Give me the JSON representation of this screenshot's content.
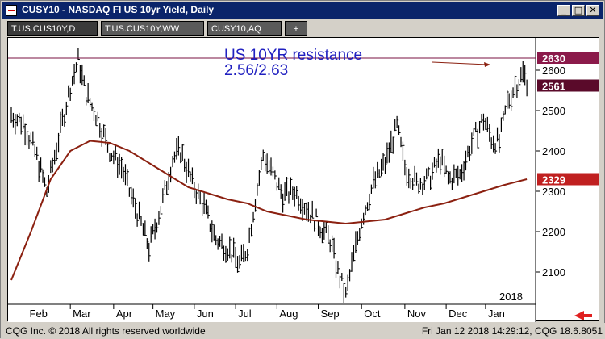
{
  "window": {
    "title": "CUSY10 - NASDAQ FI US 10yr Yield, Daily",
    "minimize_label": "_",
    "maximize_label": "□",
    "close_label": "✕"
  },
  "tabs": [
    {
      "label": "T.US.CUS10Y,D",
      "active": true
    },
    {
      "label": "T.US.CUS10Y,WW",
      "active": false
    },
    {
      "label": "CUSY10,AQ",
      "active": false
    },
    {
      "label": "+",
      "active": false
    }
  ],
  "annotation": {
    "line1": "US 10YR resistance",
    "line2": "2.56/2.63"
  },
  "year_label": "2018",
  "price_tags": [
    {
      "value": 2630,
      "label": "2630",
      "color": "#8b1a4a"
    },
    {
      "value": 2561,
      "label": "2561",
      "color": "#5a0a2a"
    },
    {
      "value": 2329,
      "label": "2329",
      "color": "#c02020"
    }
  ],
  "status": {
    "left": "CQG Inc. © 2018 All rights reserved worldwide",
    "right": "Fri Jan 12 2018 14:29:12, CQG 18.6.8051"
  },
  "colors": {
    "ma_line": "#8b2010",
    "resistance_line": "#7a1040",
    "annotation_text": "#2020c0",
    "bars": "#000000"
  },
  "chart_data": {
    "type": "line",
    "title": "CUSY10 - NASDAQ FI US 10yr Yield, Daily",
    "y_ticks": [
      2100,
      2200,
      2300,
      2400,
      2500,
      2600
    ],
    "ylim": [
      2020,
      2680
    ],
    "x_labels": [
      "Feb",
      "Mar",
      "Apr",
      "May",
      "Jun",
      "Jul",
      "Aug",
      "Sep",
      "Oct",
      "Nov",
      "Dec",
      "Jan"
    ],
    "resistance_levels": [
      2630,
      2561
    ],
    "price_path": [
      [
        0,
        2490
      ],
      [
        6,
        2470
      ],
      [
        12,
        2400
      ],
      [
        18,
        2300
      ],
      [
        24,
        2430
      ],
      [
        30,
        2560
      ],
      [
        34,
        2625
      ],
      [
        38,
        2540
      ],
      [
        44,
        2480
      ],
      [
        50,
        2400
      ],
      [
        56,
        2360
      ],
      [
        60,
        2300
      ],
      [
        66,
        2220
      ],
      [
        70,
        2160
      ],
      [
        76,
        2260
      ],
      [
        82,
        2380
      ],
      [
        86,
        2400
      ],
      [
        92,
        2320
      ],
      [
        98,
        2260
      ],
      [
        104,
        2180
      ],
      [
        110,
        2160
      ],
      [
        116,
        2120
      ],
      [
        120,
        2160
      ],
      [
        124,
        2280
      ],
      [
        128,
        2390
      ],
      [
        132,
        2350
      ],
      [
        138,
        2290
      ],
      [
        144,
        2300
      ],
      [
        150,
        2260
      ],
      [
        156,
        2220
      ],
      [
        162,
        2180
      ],
      [
        166,
        2100
      ],
      [
        170,
        2040
      ],
      [
        174,
        2140
      ],
      [
        178,
        2230
      ],
      [
        184,
        2320
      ],
      [
        190,
        2370
      ],
      [
        196,
        2460
      ],
      [
        200,
        2360
      ],
      [
        206,
        2320
      ],
      [
        212,
        2330
      ],
      [
        218,
        2380
      ],
      [
        222,
        2330
      ],
      [
        228,
        2340
      ],
      [
        234,
        2420
      ],
      [
        240,
        2480
      ],
      [
        244,
        2430
      ],
      [
        248,
        2420
      ],
      [
        252,
        2520
      ],
      [
        256,
        2560
      ],
      [
        260,
        2590
      ],
      [
        262,
        2575
      ]
    ],
    "ma_path": [
      [
        0,
        2080
      ],
      [
        10,
        2200
      ],
      [
        20,
        2330
      ],
      [
        30,
        2400
      ],
      [
        40,
        2425
      ],
      [
        50,
        2420
      ],
      [
        60,
        2400
      ],
      [
        70,
        2370
      ],
      [
        80,
        2340
      ],
      [
        90,
        2310
      ],
      [
        100,
        2295
      ],
      [
        110,
        2280
      ],
      [
        120,
        2270
      ],
      [
        130,
        2250
      ],
      [
        140,
        2240
      ],
      [
        150,
        2230
      ],
      [
        160,
        2225
      ],
      [
        170,
        2220
      ],
      [
        180,
        2225
      ],
      [
        190,
        2230
      ],
      [
        200,
        2245
      ],
      [
        210,
        2260
      ],
      [
        220,
        2270
      ],
      [
        230,
        2285
      ],
      [
        240,
        2300
      ],
      [
        250,
        2315
      ],
      [
        262,
        2330
      ]
    ]
  }
}
